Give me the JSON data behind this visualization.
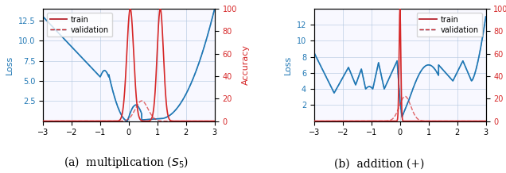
{
  "fig_width": 6.36,
  "fig_height": 2.18,
  "dpi": 100,
  "xlim": [
    -3,
    3
  ],
  "xticks": [
    -3,
    -2,
    -1,
    0,
    1,
    2,
    3
  ],
  "left_ylabel": "Loss",
  "right_ylabel": "Accuracy",
  "right_ylim": [
    0,
    100
  ],
  "right_yticks": [
    0,
    20,
    40,
    60,
    80,
    100
  ],
  "blue_color": "#1f77b4",
  "red_color": "#d62728",
  "legend_labels": [
    "train",
    "validation"
  ],
  "caption_a": "(a)  multiplication ($S_5$)",
  "caption_b": "(b)  addition (+)",
  "caption_fontsize": 10,
  "subplot_a": {
    "loss_ylim": [
      0,
      14
    ],
    "loss_yticks": [
      2.5,
      5.0,
      7.5,
      10.0,
      12.5
    ],
    "legend_loc": "upper left"
  },
  "subplot_b": {
    "loss_ylim": [
      0,
      14
    ],
    "loss_yticks": [
      2,
      4,
      6,
      8,
      10,
      12
    ],
    "legend_loc": "upper right"
  }
}
